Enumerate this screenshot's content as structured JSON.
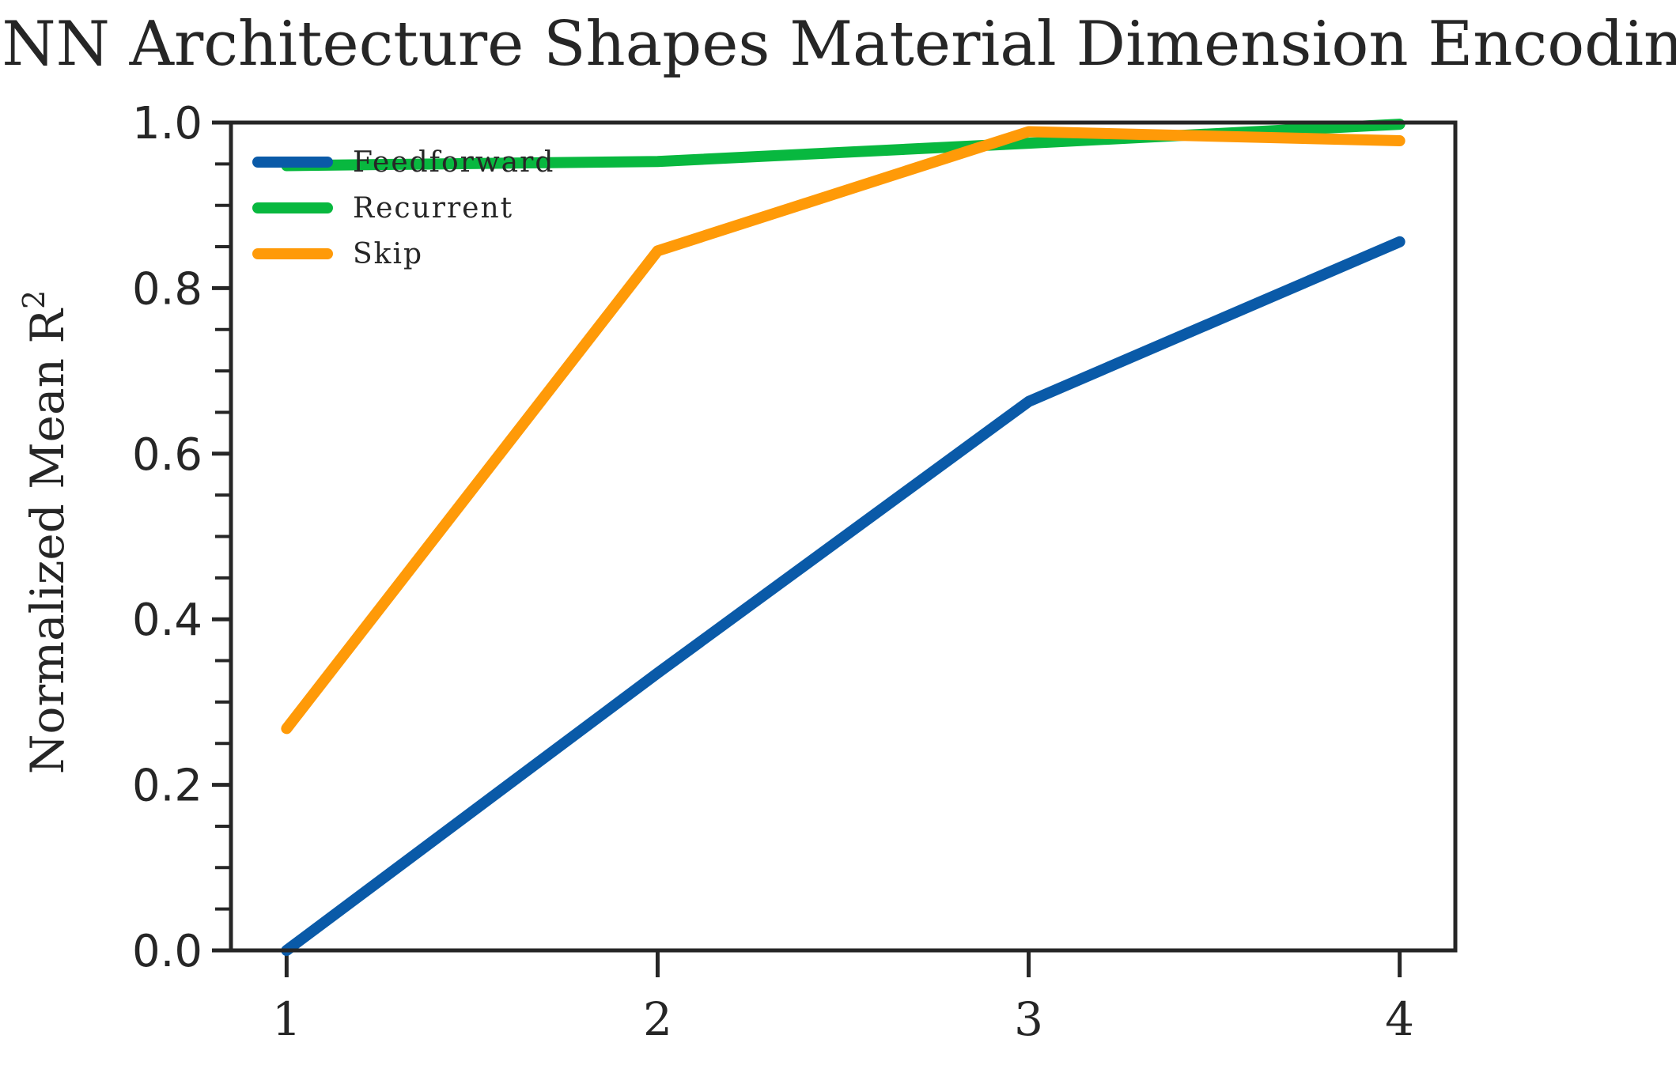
{
  "chart_data": {
    "type": "line",
    "title": "DNN Architecture Shapes Material Dimension Encoding",
    "xlabel": "",
    "ylabel": "Normalized Mean R",
    "ylabel_superscript": "2",
    "x": [
      1,
      2,
      3,
      4
    ],
    "xticks": [
      "1",
      "2",
      "3",
      "4"
    ],
    "xlim": [
      0.85,
      4.15
    ],
    "ylim": [
      0.0,
      1.0
    ],
    "yticks": [
      "0.0",
      "0.2",
      "0.4",
      "0.6",
      "0.8",
      "1.0"
    ],
    "grid": false,
    "legend_position": "top-left",
    "series": [
      {
        "name": "Feedforward",
        "color": "#0a5aa8",
        "values": [
          0.0,
          0.335,
          0.663,
          0.856
        ]
      },
      {
        "name": "Recurrent",
        "color": "#08b83f",
        "values": [
          0.948,
          0.953,
          0.975,
          0.998
        ]
      },
      {
        "name": "Skip",
        "color": "#ff9a08",
        "values": [
          0.268,
          0.845,
          0.989,
          0.978
        ]
      }
    ]
  }
}
